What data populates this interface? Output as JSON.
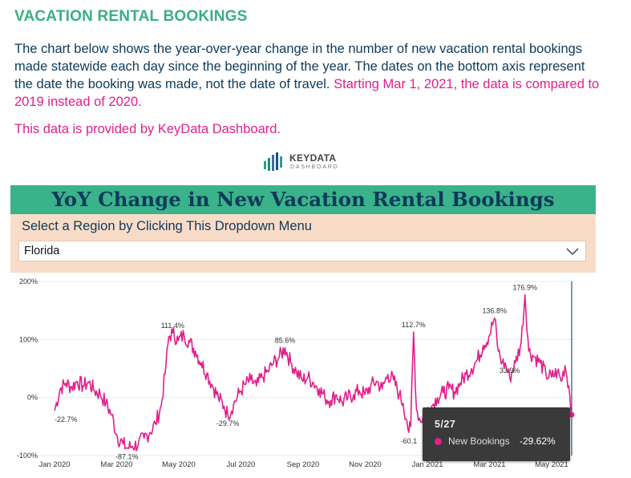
{
  "header": {
    "title": "VACATION RENTAL BOOKINGS",
    "intro_text": "The chart below shows the year-over-year change in the number of new vacation rental bookings made statewide each day since the beginning of the year. The dates on the bottom axis represent the date the booking was made, not the date of travel.",
    "intro_highlight": "Starting Mar 1, 2021, the data is compared to 2019 instead of 2020.",
    "provided_by": "This data is provided by KeyData Dashboard."
  },
  "logo": {
    "name": "KEYDATA",
    "sub": "DASHBOARD",
    "icon": "bar-chart-logo-icon"
  },
  "banner": {
    "title": "YoY Change in New Vacation Rental Bookings"
  },
  "region": {
    "label": "Select a Region by Clicking This Dropdown Menu",
    "selected": "Florida",
    "icon": "chevron-down-icon"
  },
  "colors": {
    "accent": "#3ab38a",
    "series": "#e0208a",
    "heading": "#3ab07f",
    "text": "#0e3a5a"
  },
  "tooltip": {
    "date": "5/27",
    "series": "New Bookings",
    "value": "-29.62%"
  },
  "chart_data": {
    "type": "line",
    "x_tick_labels": [
      "Jan 2020",
      "Mar 2020",
      "May 2020",
      "Jul 2020",
      "Sep 2020",
      "Nov 2020",
      "Jan 2021",
      "Mar 2021",
      "May 2021"
    ],
    "y_tick_labels": [
      "200%",
      "100%",
      "0%",
      "-100%"
    ],
    "ylim": [
      -100,
      200
    ],
    "grid": true,
    "series": [
      {
        "values": [
          [
            0,
            -22.7
          ],
          [
            6,
            15
          ],
          [
            12,
            25
          ],
          [
            18,
            18
          ],
          [
            24,
            28
          ],
          [
            30,
            20
          ],
          [
            36,
            26
          ],
          [
            42,
            12
          ],
          [
            48,
            6
          ],
          [
            54,
            -10
          ],
          [
            60,
            -30
          ],
          [
            66,
            -68
          ],
          [
            72,
            -80
          ],
          [
            76,
            -87.1
          ],
          [
            82,
            -84
          ],
          [
            88,
            -80
          ],
          [
            94,
            -70
          ],
          [
            100,
            -60
          ],
          [
            106,
            -45
          ],
          [
            112,
            -15
          ],
          [
            116,
            40
          ],
          [
            120,
            105
          ],
          [
            124,
            111.4
          ],
          [
            130,
            98
          ],
          [
            136,
            108
          ],
          [
            142,
            95
          ],
          [
            148,
            80
          ],
          [
            154,
            60
          ],
          [
            160,
            42
          ],
          [
            166,
            20
          ],
          [
            172,
            0
          ],
          [
            178,
            -15
          ],
          [
            182,
            -29.7
          ],
          [
            188,
            -12
          ],
          [
            194,
            8
          ],
          [
            200,
            22
          ],
          [
            206,
            30
          ],
          [
            212,
            20
          ],
          [
            218,
            35
          ],
          [
            224,
            45
          ],
          [
            230,
            60
          ],
          [
            236,
            70
          ],
          [
            242,
            85.6
          ],
          [
            248,
            60
          ],
          [
            254,
            45
          ],
          [
            260,
            30
          ],
          [
            266,
            35
          ],
          [
            272,
            25
          ],
          [
            278,
            15
          ],
          [
            284,
            0
          ],
          [
            290,
            -5
          ],
          [
            296,
            5
          ],
          [
            302,
            -8
          ],
          [
            308,
            0
          ],
          [
            314,
            5
          ],
          [
            320,
            12
          ],
          [
            326,
            5
          ],
          [
            332,
            20
          ],
          [
            338,
            28
          ],
          [
            344,
            15
          ],
          [
            350,
            40
          ],
          [
            356,
            30
          ],
          [
            362,
            5
          ],
          [
            366,
            -10
          ],
          [
            370,
            -40
          ],
          [
            372,
            -60
          ],
          [
            374,
            -50
          ],
          [
            377,
            112.7
          ],
          [
            380,
            -20
          ],
          [
            384,
            -40
          ],
          [
            390,
            -25
          ],
          [
            396,
            -15
          ],
          [
            402,
            0
          ],
          [
            408,
            8
          ],
          [
            414,
            15
          ],
          [
            420,
            10
          ],
          [
            426,
            25
          ],
          [
            432,
            40
          ],
          [
            438,
            50
          ],
          [
            444,
            65
          ],
          [
            450,
            90
          ],
          [
            456,
            105
          ],
          [
            462,
            136.8
          ],
          [
            466,
            80
          ],
          [
            470,
            60
          ],
          [
            474,
            55
          ],
          [
            478,
            33.9
          ],
          [
            484,
            60
          ],
          [
            490,
            95
          ],
          [
            494,
            176.9
          ],
          [
            498,
            80
          ],
          [
            504,
            70
          ],
          [
            510,
            60
          ],
          [
            516,
            40
          ],
          [
            522,
            35
          ],
          [
            528,
            45
          ],
          [
            532,
            28
          ],
          [
            536,
            55
          ],
          [
            540,
            20
          ],
          [
            543,
            -29.62
          ]
        ]
      }
    ],
    "annotations": [
      {
        "x": 0,
        "y": -22.7,
        "label": "-22.7%"
      },
      {
        "x": 76,
        "y": -87.1,
        "label": "-87.1%"
      },
      {
        "x": 124,
        "y": 111.4,
        "label": "111.4%"
      },
      {
        "x": 182,
        "y": -29.7,
        "label": "-29.7%"
      },
      {
        "x": 242,
        "y": 85.6,
        "label": "85.6%"
      },
      {
        "x": 377,
        "y": 112.7,
        "label": "112.7%"
      },
      {
        "x": 372,
        "y": -60.1,
        "label": "-60.1"
      },
      {
        "x": 462,
        "y": 136.8,
        "label": "136.8%"
      },
      {
        "x": 478,
        "y": 33.9,
        "label": "33.9%"
      },
      {
        "x": 494,
        "y": 176.9,
        "label": "176.9%"
      }
    ]
  }
}
